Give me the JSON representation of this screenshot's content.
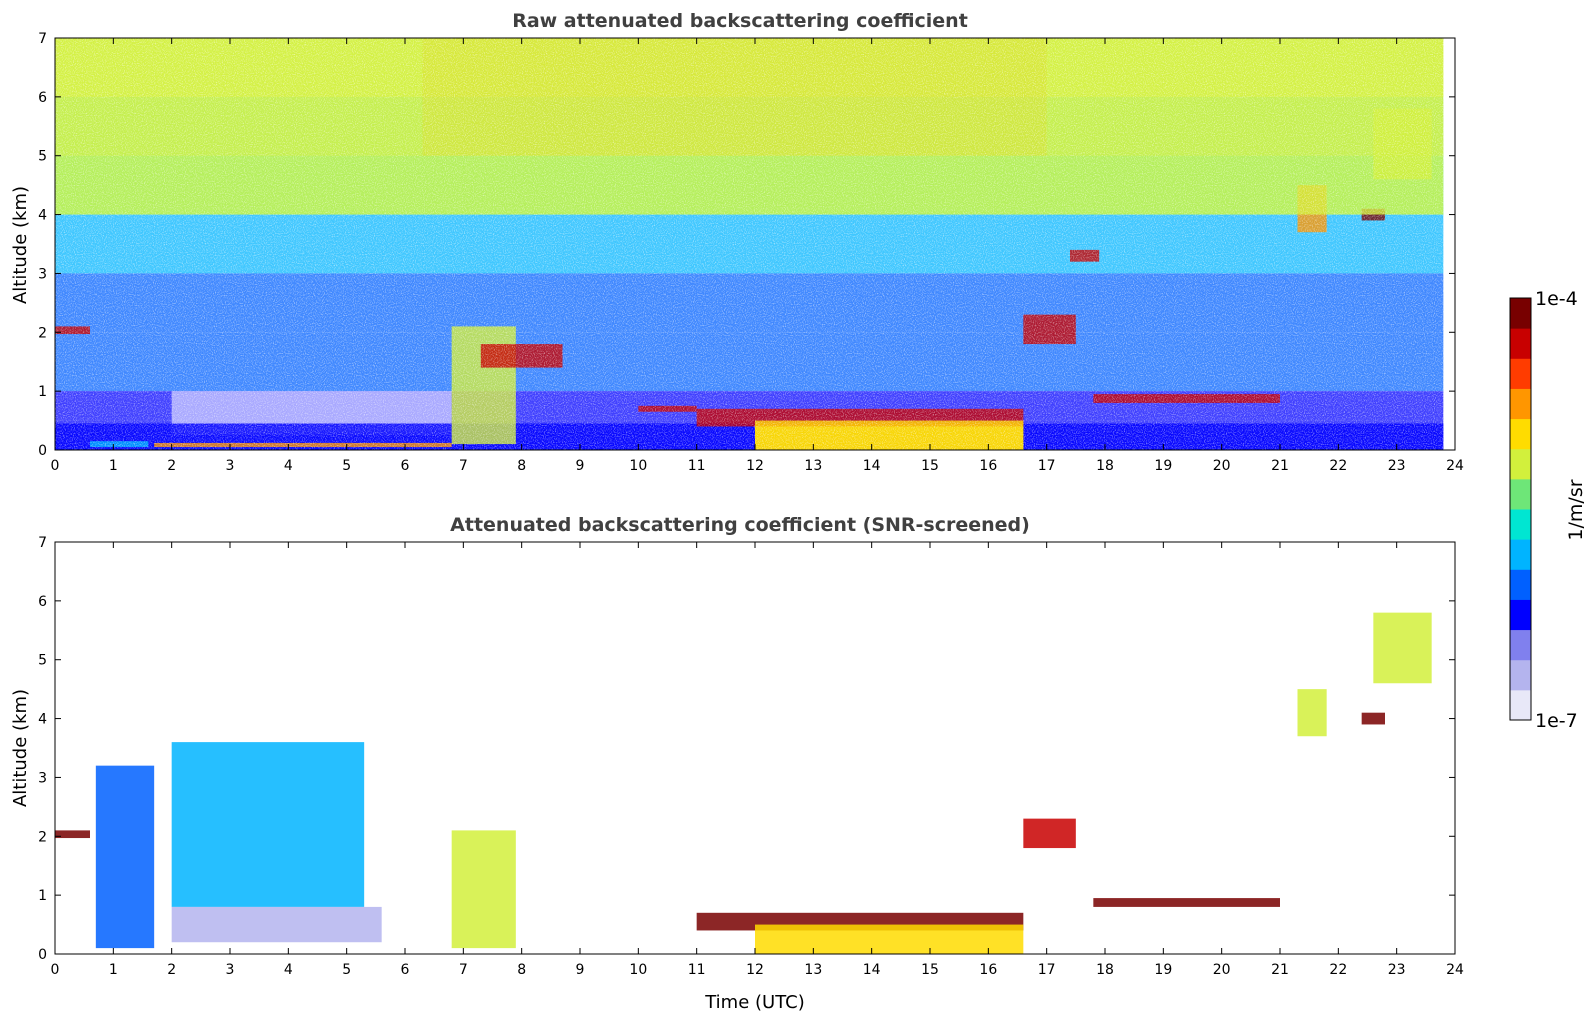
{
  "chart_data": [
    {
      "type": "heatmap",
      "title": "Raw attenuated backscattering coefficient",
      "xlabel": "",
      "ylabel": "Altitude (km)",
      "xlim": [
        0,
        24
      ],
      "ylim": [
        0,
        7
      ],
      "x_ticks": [
        "0",
        "1",
        "2",
        "3",
        "4",
        "5",
        "6",
        "7",
        "8",
        "9",
        "10",
        "11",
        "12",
        "13",
        "14",
        "15",
        "16",
        "17",
        "18",
        "19",
        "20",
        "21",
        "22",
        "23",
        "24"
      ],
      "y_ticks": [
        "0",
        "1",
        "2",
        "3",
        "4",
        "5",
        "6",
        "7"
      ],
      "features": [
        {
          "x": [
            0.0,
            0.6
          ],
          "y": [
            1.97,
            2.1
          ],
          "level": 0.95
        },
        {
          "x": [
            0.6,
            1.6
          ],
          "y": [
            0.05,
            0.15
          ],
          "level": 0.35
        },
        {
          "x": [
            1.7,
            6.8
          ],
          "y": [
            0.05,
            0.12
          ],
          "level": 0.8
        },
        {
          "x": [
            6.8,
            7.9
          ],
          "y": [
            0.1,
            2.1
          ],
          "level": 0.6
        },
        {
          "x": [
            7.3,
            8.7
          ],
          "y": [
            1.4,
            1.8
          ],
          "level": 0.95
        },
        {
          "x": [
            10.0,
            11.0
          ],
          "y": [
            0.65,
            0.75
          ],
          "level": 0.95
        },
        {
          "x": [
            11.0,
            16.6
          ],
          "y": [
            0.4,
            0.7
          ],
          "level": 0.95
        },
        {
          "x": [
            12.0,
            16.6
          ],
          "y": [
            0.0,
            0.5
          ],
          "level": 0.7
        },
        {
          "x": [
            16.6,
            17.5
          ],
          "y": [
            1.8,
            2.3
          ],
          "level": 0.95
        },
        {
          "x": [
            17.4,
            17.9
          ],
          "y": [
            3.2,
            3.4
          ],
          "level": 0.95
        },
        {
          "x": [
            17.8,
            21.0
          ],
          "y": [
            0.8,
            0.95
          ],
          "level": 0.9
        },
        {
          "x": [
            21.3,
            21.8
          ],
          "y": [
            3.7,
            4.5
          ],
          "level": 0.75
        },
        {
          "x": [
            22.4,
            22.8
          ],
          "y": [
            3.9,
            4.1
          ],
          "level": 1.0
        },
        {
          "x": [
            22.6,
            23.6
          ],
          "y": [
            4.6,
            5.8
          ],
          "level": 0.65
        },
        {
          "x": [
            0.0,
            23.8
          ],
          "y": [
            4.0,
            7.0
          ],
          "level": 0.6
        }
      ]
    },
    {
      "type": "heatmap",
      "title": "Attenuated backscattering coefficient (SNR-screened)",
      "xlabel": "Time (UTC)",
      "ylabel": "Altitude (km)",
      "xlim": [
        0,
        24
      ],
      "ylim": [
        0,
        7
      ],
      "x_ticks": [
        "0",
        "1",
        "2",
        "3",
        "4",
        "5",
        "6",
        "7",
        "8",
        "9",
        "10",
        "11",
        "12",
        "13",
        "14",
        "15",
        "16",
        "17",
        "18",
        "19",
        "20",
        "21",
        "22",
        "23",
        "24"
      ],
      "y_ticks": [
        "0",
        "1",
        "2",
        "3",
        "4",
        "5",
        "6",
        "7"
      ],
      "features": [
        {
          "x": [
            0.0,
            0.6
          ],
          "y": [
            1.97,
            2.1
          ],
          "level": 1.0
        },
        {
          "x": [
            0.7,
            1.7
          ],
          "y": [
            0.1,
            3.2
          ],
          "level": 0.3
        },
        {
          "x": [
            2.0,
            5.3
          ],
          "y": [
            0.8,
            3.6
          ],
          "level": 0.35
        },
        {
          "x": [
            2.0,
            5.6
          ],
          "y": [
            0.2,
            0.8
          ],
          "level": 0.05
        },
        {
          "x": [
            6.8,
            7.9
          ],
          "y": [
            0.1,
            2.1
          ],
          "level": 0.6
        },
        {
          "x": [
            11.0,
            16.6
          ],
          "y": [
            0.4,
            0.7
          ],
          "level": 1.0
        },
        {
          "x": [
            12.0,
            16.6
          ],
          "y": [
            0.0,
            0.5
          ],
          "level": 0.7
        },
        {
          "x": [
            16.6,
            17.5
          ],
          "y": [
            1.8,
            2.3
          ],
          "level": 0.95
        },
        {
          "x": [
            17.8,
            21.0
          ],
          "y": [
            0.8,
            0.95
          ],
          "level": 1.0
        },
        {
          "x": [
            21.3,
            21.8
          ],
          "y": [
            3.7,
            4.5
          ],
          "level": 0.65
        },
        {
          "x": [
            22.4,
            22.8
          ],
          "y": [
            3.9,
            4.1
          ],
          "level": 1.0
        },
        {
          "x": [
            22.6,
            23.6
          ],
          "y": [
            4.6,
            5.8
          ],
          "level": 0.65
        }
      ]
    }
  ],
  "colorbar": {
    "label": "1/m/sr",
    "max_label": "1e-4",
    "min_label": "1e-7",
    "colors": [
      "#e8e8f8",
      "#b4b4ee",
      "#8080ee",
      "#0000ff",
      "#0060ff",
      "#00b4ff",
      "#00e6d2",
      "#6ee678",
      "#d2f03c",
      "#ffdc00",
      "#ff9600",
      "#ff3c00",
      "#c80000",
      "#780000"
    ]
  }
}
